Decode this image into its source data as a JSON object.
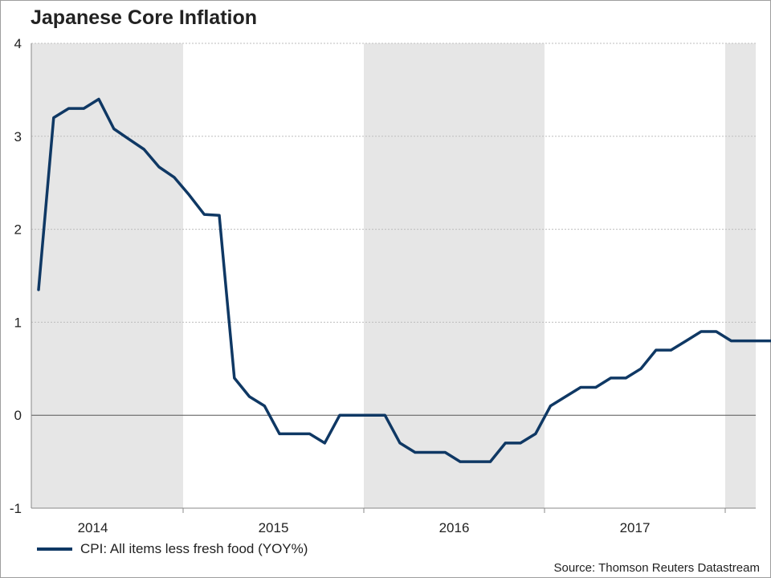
{
  "title": "Japanese Core Inflation",
  "source": "Source: Thomson Reuters Datastream",
  "colors": {
    "series": "#0f3864",
    "shading": "#e6e6e6",
    "grid": "#bdbdbd",
    "zero_line": "#555555",
    "axis": "#888888"
  },
  "chart_data": {
    "type": "line",
    "title": "Japanese Core Inflation",
    "xlabel": "",
    "ylabel": "",
    "xlim": [
      "2013-06",
      "2017-10"
    ],
    "ylim": [
      -1,
      4
    ],
    "yticks": [
      -1,
      0,
      1,
      2,
      3,
      4
    ],
    "xtick_labels": [
      "2014",
      "2015",
      "2016",
      "2017"
    ],
    "shaded_years": [
      "2014",
      "2016",
      "2018"
    ],
    "grid": true,
    "legend_position": "bottom-left",
    "series": [
      {
        "name": "CPI: All items less fresh food (YOY%)",
        "x": [
          "2013-06",
          "2013-07",
          "2013-08",
          "2013-09",
          "2013-10",
          "2013-11",
          "2013-12",
          "2014-01",
          "2014-02",
          "2014-03",
          "2014-04",
          "2014-05",
          "2014-06",
          "2014-07",
          "2014-08",
          "2014-09",
          "2014-10",
          "2014-11",
          "2014-12",
          "2015-01",
          "2015-02",
          "2015-03",
          "2015-04",
          "2015-05",
          "2015-06",
          "2015-07",
          "2015-08",
          "2015-09",
          "2015-10",
          "2015-11",
          "2015-12",
          "2016-01",
          "2016-02",
          "2016-03",
          "2016-04",
          "2016-05",
          "2016-06",
          "2016-07",
          "2016-08",
          "2016-09",
          "2016-10",
          "2016-11",
          "2016-12",
          "2017-01",
          "2017-02",
          "2017-03",
          "2017-04",
          "2017-05",
          "2017-06",
          "2017-07",
          "2017-08",
          "2017-09"
        ],
        "values": [
          1.35,
          3.2,
          3.3,
          3.3,
          3.4,
          3.08,
          2.97,
          2.86,
          2.67,
          2.56,
          2.37,
          2.16,
          2.15,
          0.4,
          0.2,
          0.1,
          -0.2,
          -0.2,
          -0.2,
          -0.3,
          0.0,
          0.0,
          0.0,
          0.0,
          -0.3,
          -0.4,
          -0.4,
          -0.4,
          -0.5,
          -0.5,
          -0.5,
          -0.3,
          -0.3,
          -0.2,
          0.1,
          0.2,
          0.3,
          0.3,
          0.4,
          0.4,
          0.5,
          0.7,
          0.7,
          0.8,
          0.9,
          0.9,
          0.8,
          0.8,
          0.8,
          0.8,
          0.8,
          0.8
        ]
      }
    ]
  }
}
